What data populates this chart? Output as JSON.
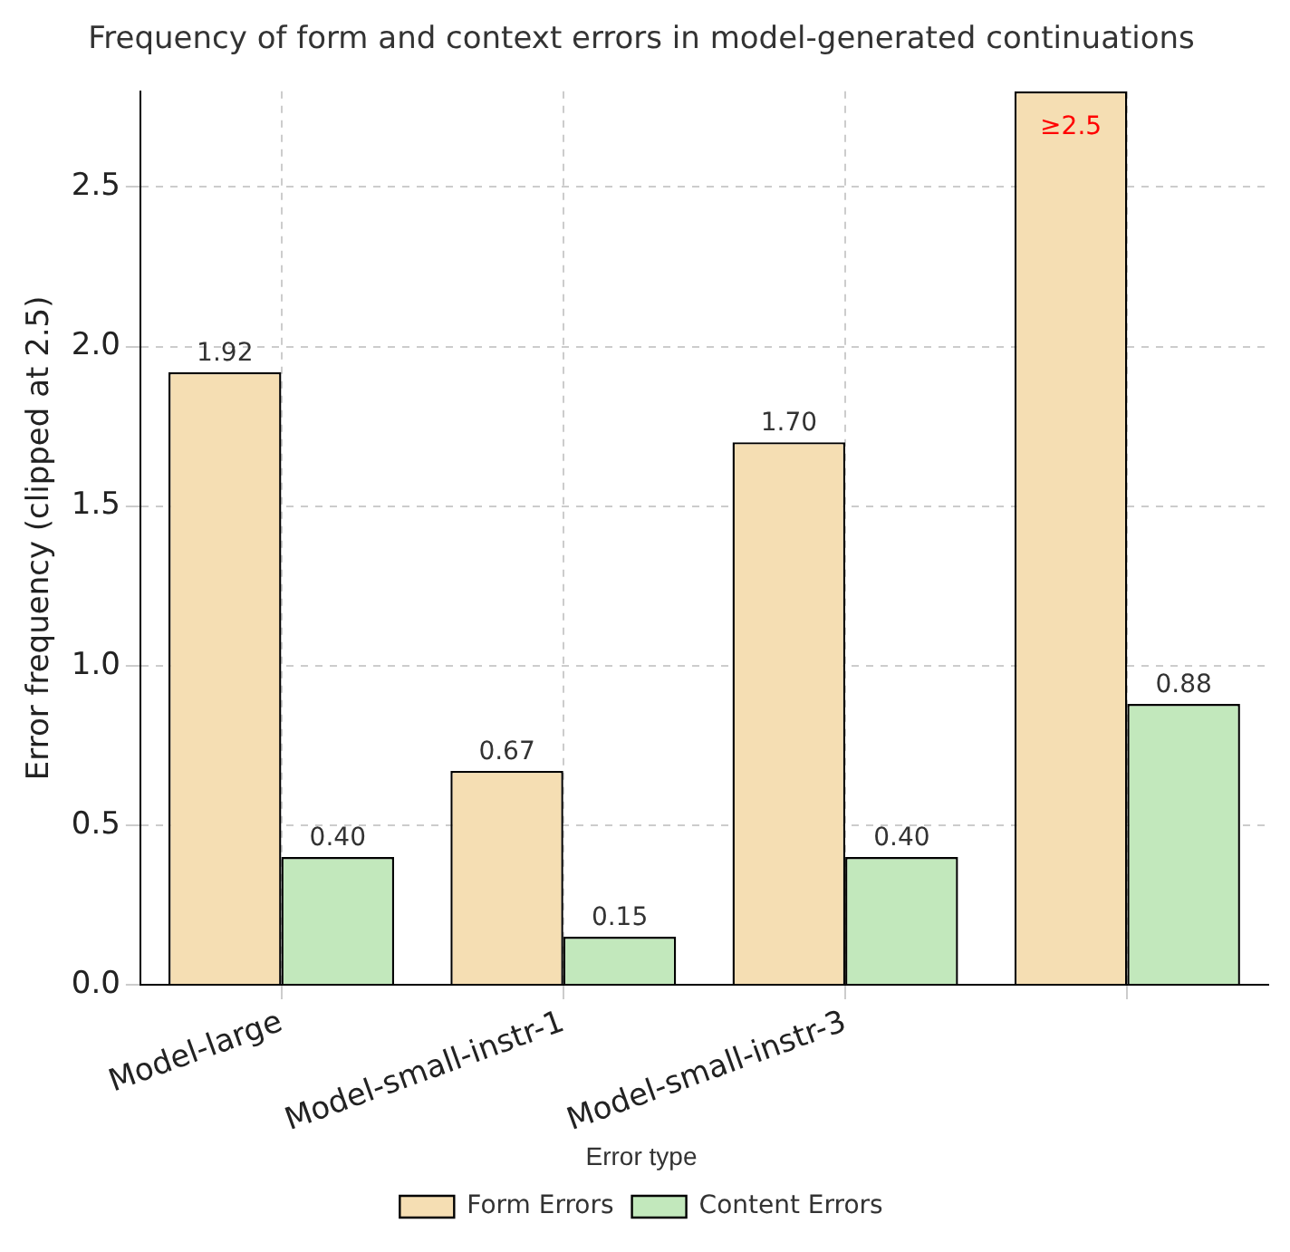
{
  "chart_data": {
    "type": "bar",
    "title": "Frequency of form and context errors in model-generated continuations",
    "ylabel": "Error frequency (clipped at 2.5)",
    "legend_title": "Error type",
    "categories": [
      "Model-large",
      "Model-small-instr-1",
      "Model-small-instr-3",
      null
    ],
    "series": [
      {
        "name": "Form Errors",
        "color": "#f5deb3",
        "values": [
          1.92,
          0.67,
          1.7,
          2.8
        ],
        "value_labels": [
          "1.92",
          "0.67",
          "1.70",
          "≥2.5"
        ]
      },
      {
        "name": "Content Errors",
        "color": "#c2e8bc",
        "values": [
          0.4,
          0.15,
          0.4,
          0.88
        ],
        "value_labels": [
          "0.40",
          "0.15",
          "0.40",
          "0.88"
        ]
      }
    ],
    "ylim": [
      0,
      2.8
    ],
    "yticks": [
      {
        "value": 0,
        "label": "0.0"
      },
      0.5,
      {
        "value": 1,
        "label": "1.0"
      },
      1.5,
      {
        "value": 2,
        "label": "2.0"
      },
      2.5
    ],
    "grid": true,
    "legend": "bottom"
  }
}
